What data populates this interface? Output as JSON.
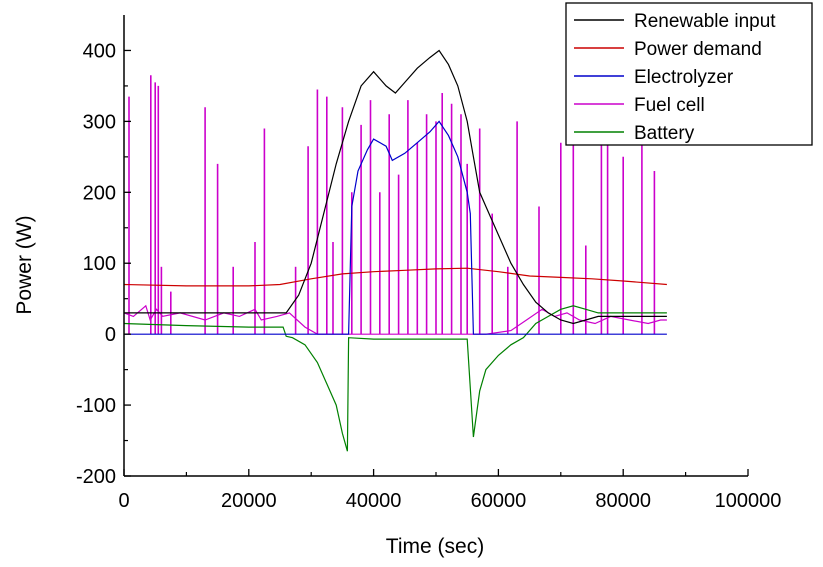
{
  "chart_data": {
    "type": "line",
    "title": "",
    "xlabel": "Time (sec)",
    "ylabel": "Power (W)",
    "xlim": [
      0,
      100000
    ],
    "ylim": [
      -200,
      450
    ],
    "xticks": [
      0,
      20000,
      40000,
      60000,
      80000,
      100000
    ],
    "yticks": [
      -200,
      -100,
      0,
      100,
      200,
      300,
      400
    ],
    "xtick_labels": [
      "0",
      "20000",
      "40000",
      "60000",
      "80000",
      "100000"
    ],
    "ytick_labels": [
      "-200",
      "-100",
      "0",
      "100",
      "200",
      "300",
      "400"
    ],
    "grid": false,
    "legend_position": "top-right",
    "series": [
      {
        "name": "Renewable input",
        "color": "#000000",
        "x": [
          0,
          24000,
          26000,
          28000,
          30000,
          32000,
          34000,
          36000,
          38000,
          40000,
          42000,
          43500,
          45000,
          47000,
          49000,
          50500,
          52000,
          53500,
          55000,
          56000,
          57000,
          58000,
          60000,
          62000,
          64000,
          66000,
          68000,
          70000,
          72000,
          74000,
          76000,
          78000,
          80000,
          84000,
          87000
        ],
        "y": [
          30,
          30,
          30,
          55,
          100,
          170,
          240,
          300,
          350,
          370,
          350,
          340,
          355,
          375,
          390,
          400,
          380,
          350,
          300,
          250,
          200,
          180,
          140,
          100,
          70,
          45,
          30,
          20,
          15,
          20,
          25,
          25,
          25,
          25,
          25
        ]
      },
      {
        "name": "Power demand",
        "color": "#cc0000",
        "x": [
          0,
          10000,
          20000,
          25000,
          30000,
          35000,
          40000,
          45000,
          50000,
          55000,
          60000,
          65000,
          70000,
          75000,
          80000,
          87000
        ],
        "y": [
          70,
          68,
          68,
          70,
          78,
          85,
          88,
          90,
          92,
          93,
          88,
          82,
          80,
          78,
          75,
          70
        ]
      },
      {
        "name": "Electrolyzer",
        "color": "#0000cc",
        "x": [
          0,
          36000,
          36500,
          37500,
          39000,
          40000,
          42000,
          43000,
          45000,
          47000,
          49000,
          50500,
          52000,
          53500,
          55000,
          55500,
          56000,
          87000
        ],
        "y": [
          0,
          0,
          180,
          230,
          260,
          275,
          265,
          245,
          255,
          270,
          285,
          300,
          280,
          250,
          200,
          170,
          0,
          0
        ]
      },
      {
        "name": "Fuel cell",
        "color": "#cc00cc",
        "x": [
          0,
          1500,
          3500,
          4200,
          5200,
          6200,
          9000,
          13000,
          16000,
          18500,
          21000,
          22000,
          24500,
          26500,
          29000,
          31000,
          33000,
          35000,
          37000,
          39000,
          41000,
          43000,
          45000,
          47000,
          49000,
          51000,
          53000,
          55000,
          58000,
          62000,
          64500,
          67000,
          69000,
          71000,
          73000,
          75500,
          78000,
          81000,
          84000,
          86000,
          87000
        ],
        "y": [
          30,
          25,
          40,
          20,
          35,
          25,
          30,
          20,
          30,
          25,
          35,
          20,
          25,
          30,
          10,
          0,
          0,
          0,
          0,
          0,
          0,
          0,
          0,
          0,
          0,
          0,
          0,
          0,
          0,
          5,
          20,
          35,
          25,
          30,
          20,
          15,
          25,
          20,
          15,
          20,
          20
        ],
        "spikes": [
          {
            "x": 800,
            "y": 335
          },
          {
            "x": 4300,
            "y": 365
          },
          {
            "x": 5000,
            "y": 355
          },
          {
            "x": 5500,
            "y": 350
          },
          {
            "x": 6000,
            "y": 95
          },
          {
            "x": 7500,
            "y": 60
          },
          {
            "x": 13000,
            "y": 320
          },
          {
            "x": 15000,
            "y": 240
          },
          {
            "x": 17500,
            "y": 95
          },
          {
            "x": 21000,
            "y": 130
          },
          {
            "x": 22500,
            "y": 290
          },
          {
            "x": 27500,
            "y": 95
          },
          {
            "x": 29500,
            "y": 265
          },
          {
            "x": 31000,
            "y": 345
          },
          {
            "x": 32500,
            "y": 335
          },
          {
            "x": 33500,
            "y": 130
          },
          {
            "x": 35000,
            "y": 320
          },
          {
            "x": 36500,
            "y": 200
          },
          {
            "x": 38000,
            "y": 295
          },
          {
            "x": 39500,
            "y": 330
          },
          {
            "x": 41000,
            "y": 200
          },
          {
            "x": 42500,
            "y": 310
          },
          {
            "x": 44000,
            "y": 225
          },
          {
            "x": 45500,
            "y": 330
          },
          {
            "x": 47000,
            "y": 270
          },
          {
            "x": 48500,
            "y": 310
          },
          {
            "x": 50000,
            "y": 300
          },
          {
            "x": 51000,
            "y": 340
          },
          {
            "x": 52500,
            "y": 325
          },
          {
            "x": 54000,
            "y": 310
          },
          {
            "x": 55000,
            "y": 240
          },
          {
            "x": 57000,
            "y": 290
          },
          {
            "x": 59000,
            "y": 170
          },
          {
            "x": 61500,
            "y": 95
          },
          {
            "x": 63000,
            "y": 300
          },
          {
            "x": 66500,
            "y": 180
          },
          {
            "x": 70000,
            "y": 270
          },
          {
            "x": 72000,
            "y": 295
          },
          {
            "x": 74000,
            "y": 125
          },
          {
            "x": 76500,
            "y": 330
          },
          {
            "x": 77500,
            "y": 290
          },
          {
            "x": 80000,
            "y": 250
          },
          {
            "x": 83000,
            "y": 270
          },
          {
            "x": 85000,
            "y": 230
          }
        ]
      },
      {
        "name": "Battery",
        "color": "#008000",
        "x": [
          0,
          10000,
          20000,
          24000,
          25500,
          26000,
          27000,
          29000,
          31000,
          32500,
          34000,
          35000,
          35800,
          36000,
          40000,
          45000,
          50000,
          55000,
          56000,
          57000,
          58000,
          60000,
          62000,
          64000,
          66000,
          68000,
          70000,
          72000,
          74000,
          76000,
          78000,
          80000,
          84000,
          87000
        ],
        "y": [
          15,
          12,
          10,
          10,
          10,
          -3,
          -5,
          -15,
          -40,
          -70,
          -100,
          -140,
          -165,
          -5,
          -7,
          -7,
          -7,
          -7,
          -145,
          -80,
          -50,
          -30,
          -15,
          -5,
          15,
          25,
          35,
          40,
          35,
          30,
          30,
          30,
          30,
          30
        ]
      }
    ]
  }
}
